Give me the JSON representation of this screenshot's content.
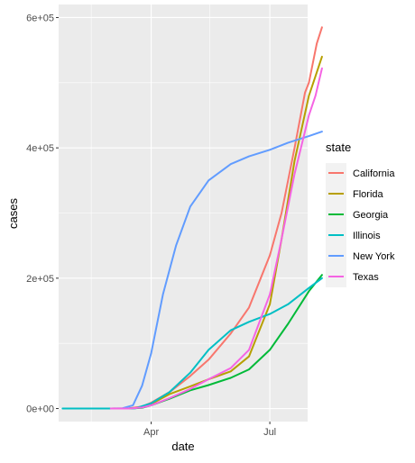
{
  "chart_data": {
    "type": "line",
    "xlabel": "date",
    "ylabel": "cases",
    "x_axis": {
      "range": [
        "2020-01-21",
        "2020-07-30"
      ],
      "ticks": [
        {
          "date": "2020-04-01",
          "label": "Apr"
        },
        {
          "date": "2020-07-01",
          "label": "Jul"
        }
      ],
      "minor_ticks": [
        "2020-02-15",
        "2020-05-16"
      ]
    },
    "y_axis": {
      "range": [
        -20000,
        620000
      ],
      "ticks": [
        {
          "value": 0,
          "label": "0e+00"
        },
        {
          "value": 200000,
          "label": "2e+05"
        },
        {
          "value": 400000,
          "label": "4e+05"
        },
        {
          "value": 600000,
          "label": "6e+05"
        }
      ],
      "minor_ticks": [
        100000,
        300000,
        500000
      ]
    },
    "grid": true,
    "legend": {
      "title": "state",
      "position": "right"
    },
    "series": [
      {
        "name": "California",
        "color": "#F8766D",
        "points": [
          [
            "2020-01-25",
            0
          ],
          [
            "2020-03-01",
            0
          ],
          [
            "2020-03-15",
            400
          ],
          [
            "2020-03-25",
            3000
          ],
          [
            "2020-04-01",
            9000
          ],
          [
            "2020-04-15",
            25000
          ],
          [
            "2020-05-01",
            50000
          ],
          [
            "2020-05-15",
            75000
          ],
          [
            "2020-06-01",
            115000
          ],
          [
            "2020-06-15",
            155000
          ],
          [
            "2020-07-01",
            235000
          ],
          [
            "2020-07-10",
            300000
          ],
          [
            "2020-07-20",
            400000
          ],
          [
            "2020-07-28",
            485000
          ],
          [
            "2020-07-31",
            500000
          ],
          [
            "2020-08-06",
            560000
          ],
          [
            "2020-08-10",
            585000
          ]
        ]
      },
      {
        "name": "Florida",
        "color": "#B79F00",
        "points": [
          [
            "2020-03-01",
            0
          ],
          [
            "2020-03-15",
            100
          ],
          [
            "2020-03-25",
            2000
          ],
          [
            "2020-04-01",
            7000
          ],
          [
            "2020-04-15",
            22000
          ],
          [
            "2020-05-01",
            34000
          ],
          [
            "2020-05-15",
            45000
          ],
          [
            "2020-06-01",
            57000
          ],
          [
            "2020-06-15",
            80000
          ],
          [
            "2020-07-01",
            160000
          ],
          [
            "2020-07-10",
            260000
          ],
          [
            "2020-07-20",
            380000
          ],
          [
            "2020-07-31",
            480000
          ],
          [
            "2020-08-05",
            510000
          ],
          [
            "2020-08-10",
            540000
          ]
        ]
      },
      {
        "name": "Georgia",
        "color": "#00BA38",
        "points": [
          [
            "2020-03-01",
            0
          ],
          [
            "2020-03-15",
            100
          ],
          [
            "2020-03-25",
            1000
          ],
          [
            "2020-04-01",
            5000
          ],
          [
            "2020-04-15",
            15000
          ],
          [
            "2020-05-01",
            28000
          ],
          [
            "2020-05-15",
            36000
          ],
          [
            "2020-06-01",
            47000
          ],
          [
            "2020-06-15",
            60000
          ],
          [
            "2020-07-01",
            90000
          ],
          [
            "2020-07-15",
            130000
          ],
          [
            "2020-07-31",
            180000
          ],
          [
            "2020-08-10",
            205000
          ]
        ]
      },
      {
        "name": "Illinois",
        "color": "#00BFC4",
        "points": [
          [
            "2020-01-24",
            0
          ],
          [
            "2020-03-10",
            0
          ],
          [
            "2020-03-20",
            500
          ],
          [
            "2020-04-01",
            8000
          ],
          [
            "2020-04-15",
            25000
          ],
          [
            "2020-05-01",
            55000
          ],
          [
            "2020-05-15",
            90000
          ],
          [
            "2020-06-01",
            120000
          ],
          [
            "2020-06-15",
            133000
          ],
          [
            "2020-07-01",
            145000
          ],
          [
            "2020-07-15",
            160000
          ],
          [
            "2020-07-31",
            185000
          ],
          [
            "2020-08-10",
            200000
          ]
        ]
      },
      {
        "name": "New York",
        "color": "#619CFF",
        "points": [
          [
            "2020-03-01",
            0
          ],
          [
            "2020-03-10",
            500
          ],
          [
            "2020-03-18",
            5000
          ],
          [
            "2020-03-25",
            35000
          ],
          [
            "2020-04-01",
            85000
          ],
          [
            "2020-04-10",
            175000
          ],
          [
            "2020-04-20",
            250000
          ],
          [
            "2020-05-01",
            310000
          ],
          [
            "2020-05-15",
            350000
          ],
          [
            "2020-06-01",
            375000
          ],
          [
            "2020-06-15",
            387000
          ],
          [
            "2020-07-01",
            397000
          ],
          [
            "2020-07-15",
            408000
          ],
          [
            "2020-07-31",
            418000
          ],
          [
            "2020-08-10",
            425000
          ]
        ]
      },
      {
        "name": "Texas",
        "color": "#F564E3",
        "points": [
          [
            "2020-03-01",
            0
          ],
          [
            "2020-03-15",
            100
          ],
          [
            "2020-03-25",
            1500
          ],
          [
            "2020-04-01",
            5000
          ],
          [
            "2020-04-15",
            16000
          ],
          [
            "2020-05-01",
            30000
          ],
          [
            "2020-05-15",
            45000
          ],
          [
            "2020-06-01",
            62000
          ],
          [
            "2020-06-15",
            90000
          ],
          [
            "2020-07-01",
            175000
          ],
          [
            "2020-07-10",
            260000
          ],
          [
            "2020-07-20",
            360000
          ],
          [
            "2020-07-31",
            450000
          ],
          [
            "2020-08-05",
            480000
          ],
          [
            "2020-08-10",
            522000
          ]
        ]
      }
    ]
  }
}
